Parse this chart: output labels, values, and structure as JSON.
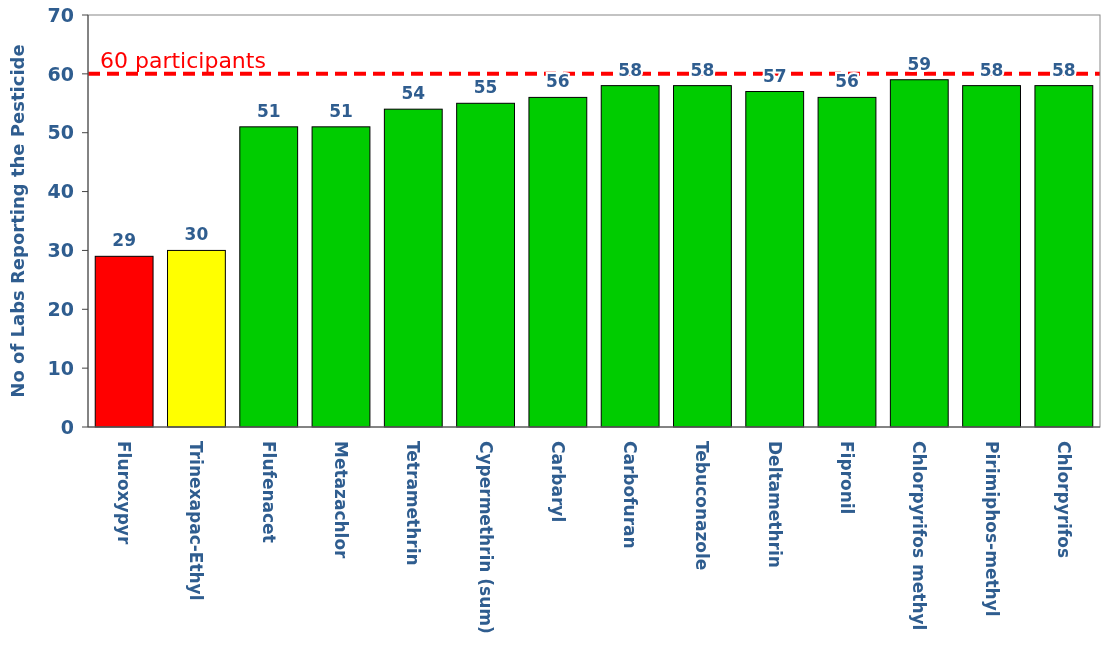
{
  "chart_data": {
    "type": "bar",
    "ylabel": "No of Labs Reporting the Pesticide",
    "categories": [
      "Fluroxypyr",
      "Trinexapac-Ethyl",
      "Flufenacet",
      "Metazachlor",
      "Tetramethrin",
      "Cypermethrin (sum)",
      "Carbaryl",
      "Carbofuran",
      "Tebuconazole",
      "Deltamethrin",
      "Fipronil",
      "Chlorpyrifos methyl",
      "Pirimiphos-methyl",
      "Chlorpyrifos"
    ],
    "values": [
      29,
      30,
      51,
      51,
      54,
      55,
      56,
      58,
      58,
      57,
      56,
      59,
      58,
      58
    ],
    "colors": [
      "#ff0000",
      "#ffff00",
      "#00cc00",
      "#00cc00",
      "#00cc00",
      "#00cc00",
      "#00cc00",
      "#00cc00",
      "#00cc00",
      "#00cc00",
      "#00cc00",
      "#00cc00",
      "#00cc00",
      "#00cc00"
    ],
    "ylim": [
      0,
      70
    ],
    "yticks": [
      0,
      10,
      20,
      30,
      40,
      50,
      60,
      70
    ],
    "data_labels": true,
    "grid": false,
    "ref_lines": [
      {
        "axis": "y",
        "value": 60,
        "label": "60 participants",
        "color": "#ff0000",
        "line_style": "dashed"
      }
    ]
  }
}
